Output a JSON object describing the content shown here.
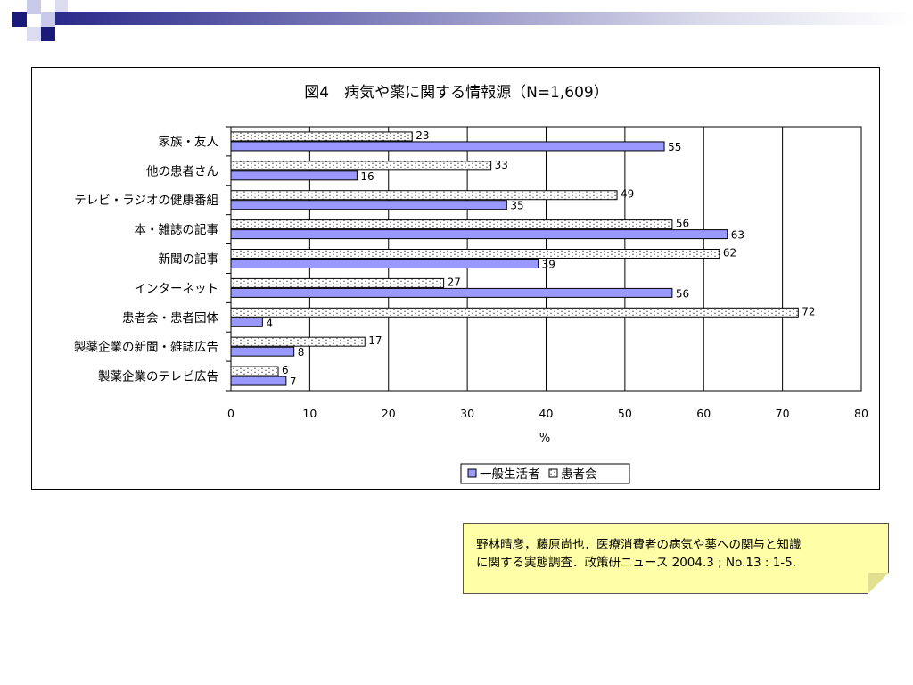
{
  "chart_data": {
    "type": "bar",
    "orientation": "horizontal",
    "title": "図4　病気や薬に関する情報源（N=1,609）",
    "xlabel": "%",
    "ylabel": "",
    "xlim": [
      0,
      80
    ],
    "xticks": [
      0,
      10,
      20,
      30,
      40,
      50,
      60,
      70,
      80
    ],
    "grid": "vertical",
    "legend_position": "bottom-right",
    "categories": [
      "家族・友人",
      "他の患者さん",
      "テレビ・ラジオの健康番組",
      "本・雑誌の記事",
      "新聞の記事",
      "インターネット",
      "患者会・患者団体",
      "製薬企業の新聞・雑誌広告",
      "製薬企業のテレビ広告"
    ],
    "series": [
      {
        "name": "患者会",
        "color": "#ffffff",
        "pattern": "dots",
        "values": [
          23,
          33,
          49,
          56,
          62,
          27,
          72,
          17,
          6
        ]
      },
      {
        "name": "一般生活者",
        "color": "#9999ff",
        "pattern": "solid",
        "values": [
          55,
          16,
          35,
          63,
          39,
          56,
          4,
          8,
          7
        ]
      }
    ],
    "legend_order": [
      "一般生活者",
      "患者会"
    ]
  },
  "citation": {
    "line1": "野林晴彦，藤原尚也．医療消費者の病気や薬への関与と知識",
    "line2": "に関する実態調査．政策研ニュース 2004.3 ; No.13 : 1-5."
  },
  "colors": {
    "deco_navy": "#1a1a7a",
    "deco_light": "#c8c8e8",
    "citation_bg": "#ffffa8"
  }
}
